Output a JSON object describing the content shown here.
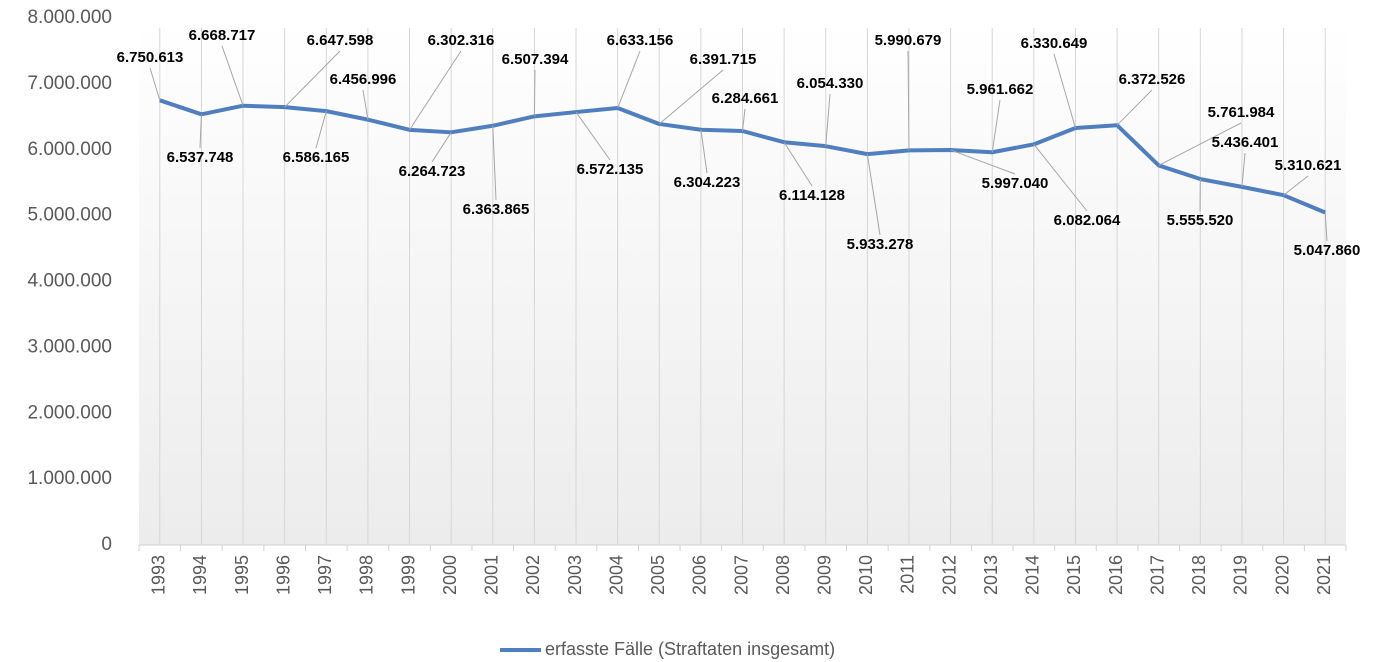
{
  "chart_data": {
    "type": "line",
    "categories": [
      "1993",
      "1994",
      "1995",
      "1996",
      "1997",
      "1998",
      "1999",
      "2000",
      "2001",
      "2002",
      "2003",
      "2004",
      "2005",
      "2006",
      "2007",
      "2008",
      "2009",
      "2010",
      "2011",
      "2012",
      "2013",
      "2014",
      "2015",
      "2016",
      "2017",
      "2018",
      "2019",
      "2020",
      "2021"
    ],
    "series": [
      {
        "name": "erfasste Fälle (Straftaten insgesamt)",
        "color": "#4f7fbf",
        "values": [
          6750613,
          6537748,
          6668717,
          6647598,
          6586165,
          6456996,
          6302316,
          6264723,
          6363865,
          6507394,
          6572135,
          6633156,
          6391715,
          6304223,
          6284661,
          6114128,
          6054330,
          5933278,
          5990679,
          5997040,
          5961662,
          6082064,
          6330649,
          6372526,
          5761984,
          5555520,
          5436401,
          5310621,
          5047860
        ],
        "value_labels": [
          "6.750.613",
          "6.537.748",
          "6.668.717",
          "6.647.598",
          "6.586.165",
          "6.456.996",
          "6.302.316",
          "6.264.723",
          "6.363.865",
          "6.507.394",
          "6.572.135",
          "6.633.156",
          "6.391.715",
          "6.304.223",
          "6.284.661",
          "6.114.128",
          "6.054.330",
          "5.933.278",
          "5.990.679",
          "5.997.040",
          "5.961.662",
          "6.082.064",
          "6.330.649",
          "6.372.526",
          "5.761.984",
          "5.555.520",
          "5.436.401",
          "5.310.621",
          "5.047.860"
        ]
      }
    ],
    "ylim": [
      0,
      8000000
    ],
    "yticks": [
      0,
      {
        "value": 1000000,
        "label": "1.000.000"
      },
      {
        "value": 2000000,
        "label": "2.000.000"
      },
      {
        "value": 3000000,
        "label": "3.000.000"
      },
      {
        "value": 4000000,
        "label": "4.000.000"
      },
      {
        "value": 5000000,
        "label": "5.000.000"
      },
      {
        "value": 6000000,
        "label": "6.000.000"
      },
      {
        "value": 7000000,
        "label": "7.000.000"
      },
      {
        "value": 8000000,
        "label": "8.000.000"
      }
    ],
    "legend": "bottom"
  }
}
